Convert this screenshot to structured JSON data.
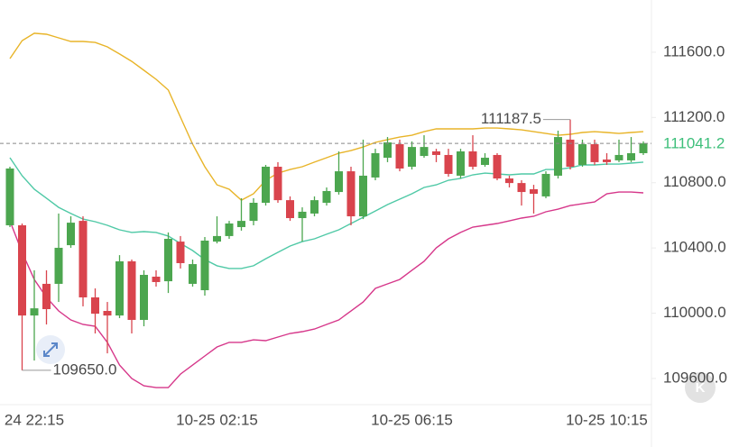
{
  "chart_data": {
    "type": "candlestick",
    "categories": [
      null,
      null,
      "24 22:15",
      null,
      null,
      null,
      null,
      null,
      null,
      null,
      null,
      null,
      null,
      null,
      null,
      null,
      null,
      "10-25 02:15",
      null,
      null,
      null,
      null,
      null,
      null,
      null,
      null,
      null,
      null,
      null,
      null,
      null,
      null,
      null,
      "10-25 06:15",
      null,
      null,
      null,
      null,
      null,
      null,
      null,
      null,
      null,
      null,
      null,
      null,
      null,
      null,
      null,
      "10-25 10:15",
      null,
      null,
      null
    ],
    "open": [
      110539,
      110539,
      109986,
      110180,
      110180,
      110417,
      110566,
      110097,
      110014,
      109986,
      110318,
      109959,
      110224,
      110196,
      110439,
      110180,
      110141,
      110439,
      110473,
      110528,
      110566,
      110677,
      110898,
      110693,
      110583,
      110611,
      110677,
      110743,
      110870,
      110594,
      110832,
      110953,
      111036,
      110898,
      110964,
      110992,
      110970,
      110843,
      110992,
      110909,
      110970,
      110826,
      110798,
      110760,
      110716,
      110843,
      111064,
      110909,
      111036,
      110942,
      110937,
      110937,
      110981
    ],
    "high": [
      110898,
      110550,
      110263,
      110263,
      110611,
      110594,
      110594,
      110152,
      110069,
      110356,
      110329,
      110263,
      110263,
      110495,
      110473,
      110329,
      110467,
      110594,
      110566,
      110705,
      110705,
      110909,
      110926,
      110716,
      110649,
      110716,
      110771,
      110992,
      110898,
      111064,
      111008,
      111080,
      111064,
      111053,
      111091,
      111008,
      111008,
      111008,
      111091,
      110981,
      110981,
      110843,
      110815,
      110787,
      110870,
      111119,
      111187.5,
      111064,
      111064,
      110981,
      111064,
      111080,
      111053
    ],
    "low": [
      110528,
      109650,
      109710,
      109931,
      110069,
      110401,
      110042,
      109876,
      109754,
      109970,
      109876,
      109920,
      110163,
      110124,
      110274,
      110163,
      110108,
      110428,
      110456,
      110506,
      110539,
      110660,
      110677,
      110566,
      110439,
      110594,
      110660,
      110727,
      110539,
      110577,
      110815,
      110926,
      110870,
      110881,
      110953,
      110926,
      110837,
      110826,
      110881,
      110898,
      110815,
      110771,
      110660,
      110611,
      110705,
      110826,
      110881,
      110898,
      110909,
      110909,
      110926,
      110926,
      110970
    ],
    "close": [
      110887,
      109986,
      110030,
      110025,
      110401,
      110555,
      110097,
      109997,
      109986,
      110318,
      109959,
      110235,
      110191,
      110456,
      110307,
      110301,
      110445,
      110473,
      110550,
      110566,
      110677,
      110898,
      110693,
      110583,
      110622,
      110693,
      110749,
      110870,
      110594,
      110843,
      110981,
      111047,
      110887,
      111019,
      111019,
      110970,
      110854,
      110992,
      110898,
      110953,
      110826,
      110798,
      110743,
      110732,
      110854,
      111080,
      110898,
      111036,
      110926,
      110926,
      110970,
      110981,
      111041.2
    ],
    "up_color": "#4ca64f",
    "down_color": "#d9444d",
    "series": [
      {
        "color": "#e8b428",
        "values": [
          111561,
          111671,
          111716,
          111710,
          111688,
          111666,
          111666,
          111660,
          111633,
          111589,
          111544,
          111489,
          111434,
          111368,
          111202,
          111036,
          110898,
          110787,
          110760,
          110693,
          110732,
          110815,
          110859,
          110881,
          110898,
          110926,
          110953,
          110981,
          110997,
          111019,
          111047,
          111064,
          111080,
          111091,
          111113,
          111130,
          111130,
          111130,
          111130,
          111135,
          111135,
          111130,
          111124,
          111113,
          111102,
          111091,
          111097,
          111108,
          111113,
          111108,
          111102,
          111108,
          111113
        ]
      },
      {
        "color": "#4fc9a6",
        "values": [
          110953,
          110843,
          110760,
          110705,
          110649,
          110611,
          110577,
          110561,
          110539,
          110511,
          110495,
          110500,
          110495,
          110473,
          110428,
          110384,
          110329,
          110291,
          110274,
          110274,
          110291,
          110334,
          110373,
          110412,
          110439,
          110456,
          110484,
          110511,
          110550,
          110588,
          110627,
          110666,
          110699,
          110732,
          110771,
          110787,
          110815,
          110826,
          110848,
          110859,
          110854,
          110848,
          110854,
          110854,
          110881,
          110881,
          110892,
          110909,
          110909,
          110914,
          110914,
          110920,
          110926
        ]
      },
      {
        "color": "#d6378a",
        "values": [
          110566,
          110373,
          110207,
          110097,
          110014,
          109959,
          109931,
          109920,
          109821,
          109682,
          109600,
          109555,
          109544,
          109544,
          109627,
          109682,
          109738,
          109793,
          109821,
          109821,
          109837,
          109832,
          109854,
          109876,
          109887,
          109903,
          109931,
          109959,
          110014,
          110069,
          110152,
          110180,
          110207,
          110263,
          110318,
          110401,
          110456,
          110495,
          110528,
          110539,
          110550,
          110566,
          110583,
          110594,
          110622,
          110638,
          110660,
          110671,
          110682,
          110732,
          110743,
          110743,
          110738
        ]
      }
    ],
    "ylim": [
      109434,
      111920
    ],
    "yticks": [
      {
        "value": 109600,
        "label": "109600.0"
      },
      {
        "value": 110000,
        "label": "110000.0"
      },
      {
        "value": 110400,
        "label": "110400.0"
      },
      {
        "value": 110800,
        "label": "110800.0"
      },
      {
        "value": 111200,
        "label": "111200.0"
      },
      {
        "value": 111600,
        "label": "111600.0"
      }
    ],
    "grid": false,
    "last_price": 111041.2,
    "last_price_color": "#3dbf7a",
    "annotations": [
      {
        "value": 111187.5,
        "label": "111187.5"
      },
      {
        "value": 109650,
        "label": "109650.0"
      }
    ]
  },
  "logo_text": "K"
}
